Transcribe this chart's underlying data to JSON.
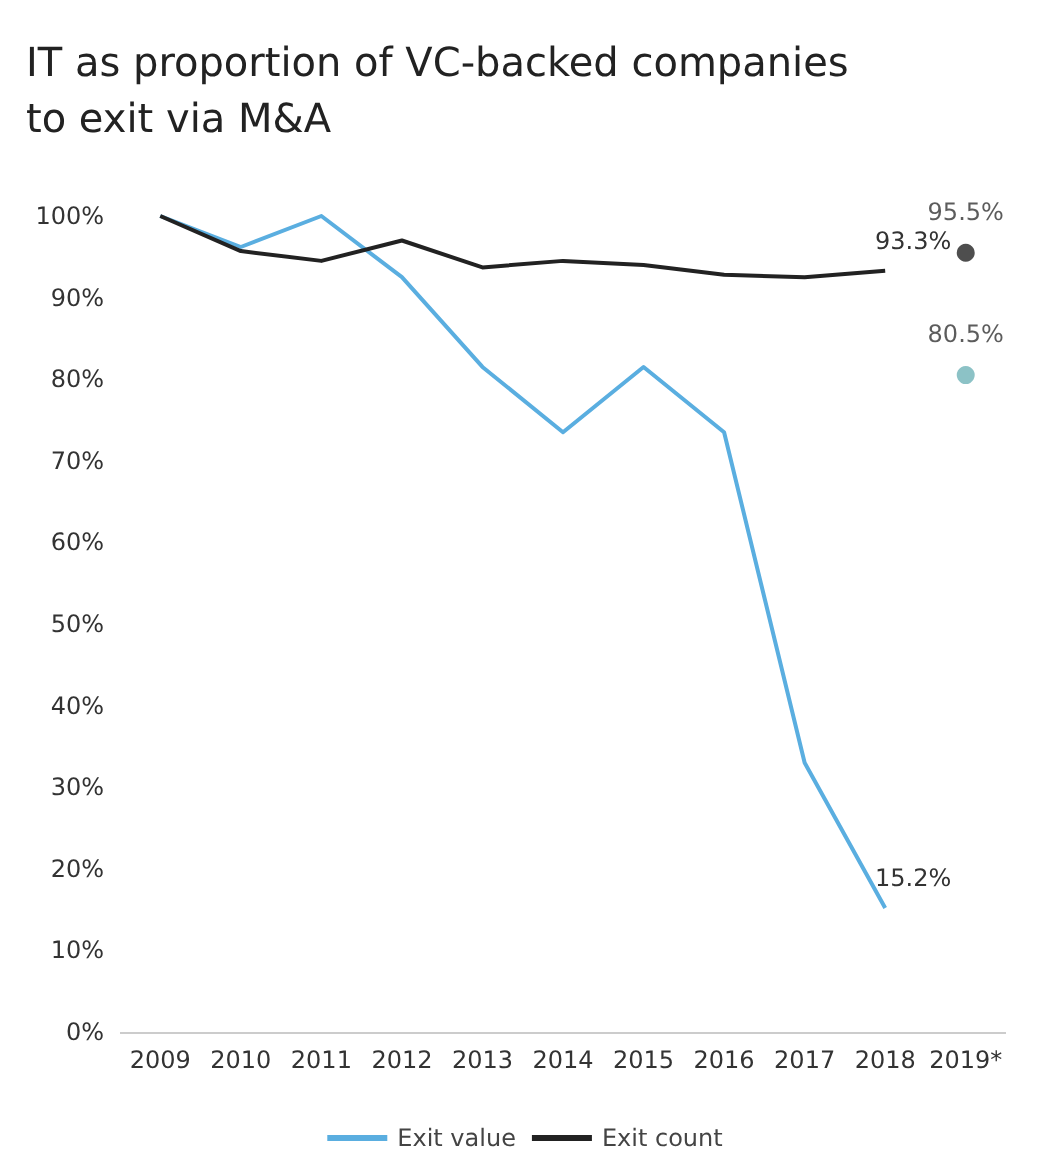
{
  "chart_data": {
    "type": "line",
    "title": "IT as proportion of VC-backed companies to exit via M&A",
    "categories": [
      "2009",
      "2010",
      "2011",
      "2012",
      "2013",
      "2014",
      "2015",
      "2016",
      "2017",
      "2018",
      "2019*"
    ],
    "series": [
      {
        "name": "Exit value",
        "color": "#5aaee0",
        "values": [
          100,
          96.2,
          100,
          92.5,
          81.5,
          73.5,
          81.5,
          73.5,
          33,
          15.2,
          null
        ],
        "value_labels": [
          null,
          null,
          null,
          null,
          null,
          null,
          null,
          null,
          null,
          "15.2%",
          null
        ]
      },
      {
        "name": "Exit count",
        "color": "#222222",
        "values": [
          100,
          95.7,
          94.5,
          97,
          93.7,
          94.5,
          94,
          92.8,
          92.5,
          93.3,
          null
        ],
        "value_labels": [
          null,
          null,
          null,
          null,
          null,
          null,
          null,
          null,
          null,
          "93.3%",
          null
        ]
      },
      {
        "type": "scatter",
        "marker": "circle",
        "color": "#222222",
        "x": [
          "2019*"
        ],
        "values": [
          95.5
        ],
        "value_labels": [
          "95.5%"
        ]
      },
      {
        "type": "scatter",
        "marker": "circle",
        "color": "#6fb3b8",
        "x": [
          "2019*"
        ],
        "values": [
          80.5
        ],
        "value_labels": [
          "80.5%"
        ]
      }
    ],
    "ylim": [
      0,
      100
    ],
    "yticks": [
      {
        "value": 0,
        "label": "0%"
      },
      {
        "value": 10,
        "label": "10%"
      },
      {
        "value": 20,
        "label": "20%"
      },
      {
        "value": 30,
        "label": "30%"
      },
      {
        "value": 40,
        "label": "40%"
      },
      {
        "value": 50,
        "label": "50%"
      },
      {
        "value": 60,
        "label": "60%"
      },
      {
        "value": 70,
        "label": "70%"
      },
      {
        "value": 80,
        "label": "80%"
      },
      {
        "value": 90,
        "label": "90%"
      },
      {
        "value": 100,
        "label": "100%"
      }
    ],
    "grid": false,
    "legend": "bottom",
    "marker": "none",
    "line_style": "solid"
  }
}
